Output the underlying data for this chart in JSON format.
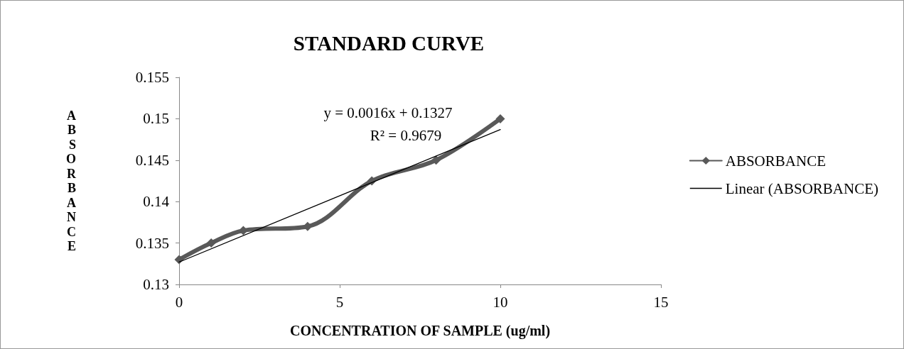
{
  "chart_data": {
    "type": "line",
    "title": "STANDARD CURVE",
    "xlabel": "CONCENTRATION OF SAMPLE (ug/ml)",
    "ylabel": "ABSORBANCE",
    "x": [
      0,
      1,
      2,
      4,
      6,
      8,
      10
    ],
    "series": [
      {
        "name": "ABSORBANCE",
        "color": "#595959",
        "values": [
          0.133,
          0.135,
          0.1365,
          0.137,
          0.1425,
          0.145,
          0.15
        ],
        "marker": "diamond"
      },
      {
        "name": "Linear (ABSORBANCE)",
        "type": "line",
        "color": "#000000",
        "x": [
          0,
          10
        ],
        "values": [
          0.1327,
          0.1487
        ],
        "marker": "none"
      }
    ],
    "xlim": [
      0,
      15
    ],
    "xticks": [
      0,
      5,
      10,
      15
    ],
    "ylim": [
      0.13,
      0.155
    ],
    "yticks": [
      0.13,
      0.135,
      0.14,
      0.145,
      0.15,
      0.155
    ],
    "annotations": [
      "y = 0.0016x + 0.1327",
      "R² = 0.9679"
    ],
    "legend": "right",
    "grid": false
  }
}
